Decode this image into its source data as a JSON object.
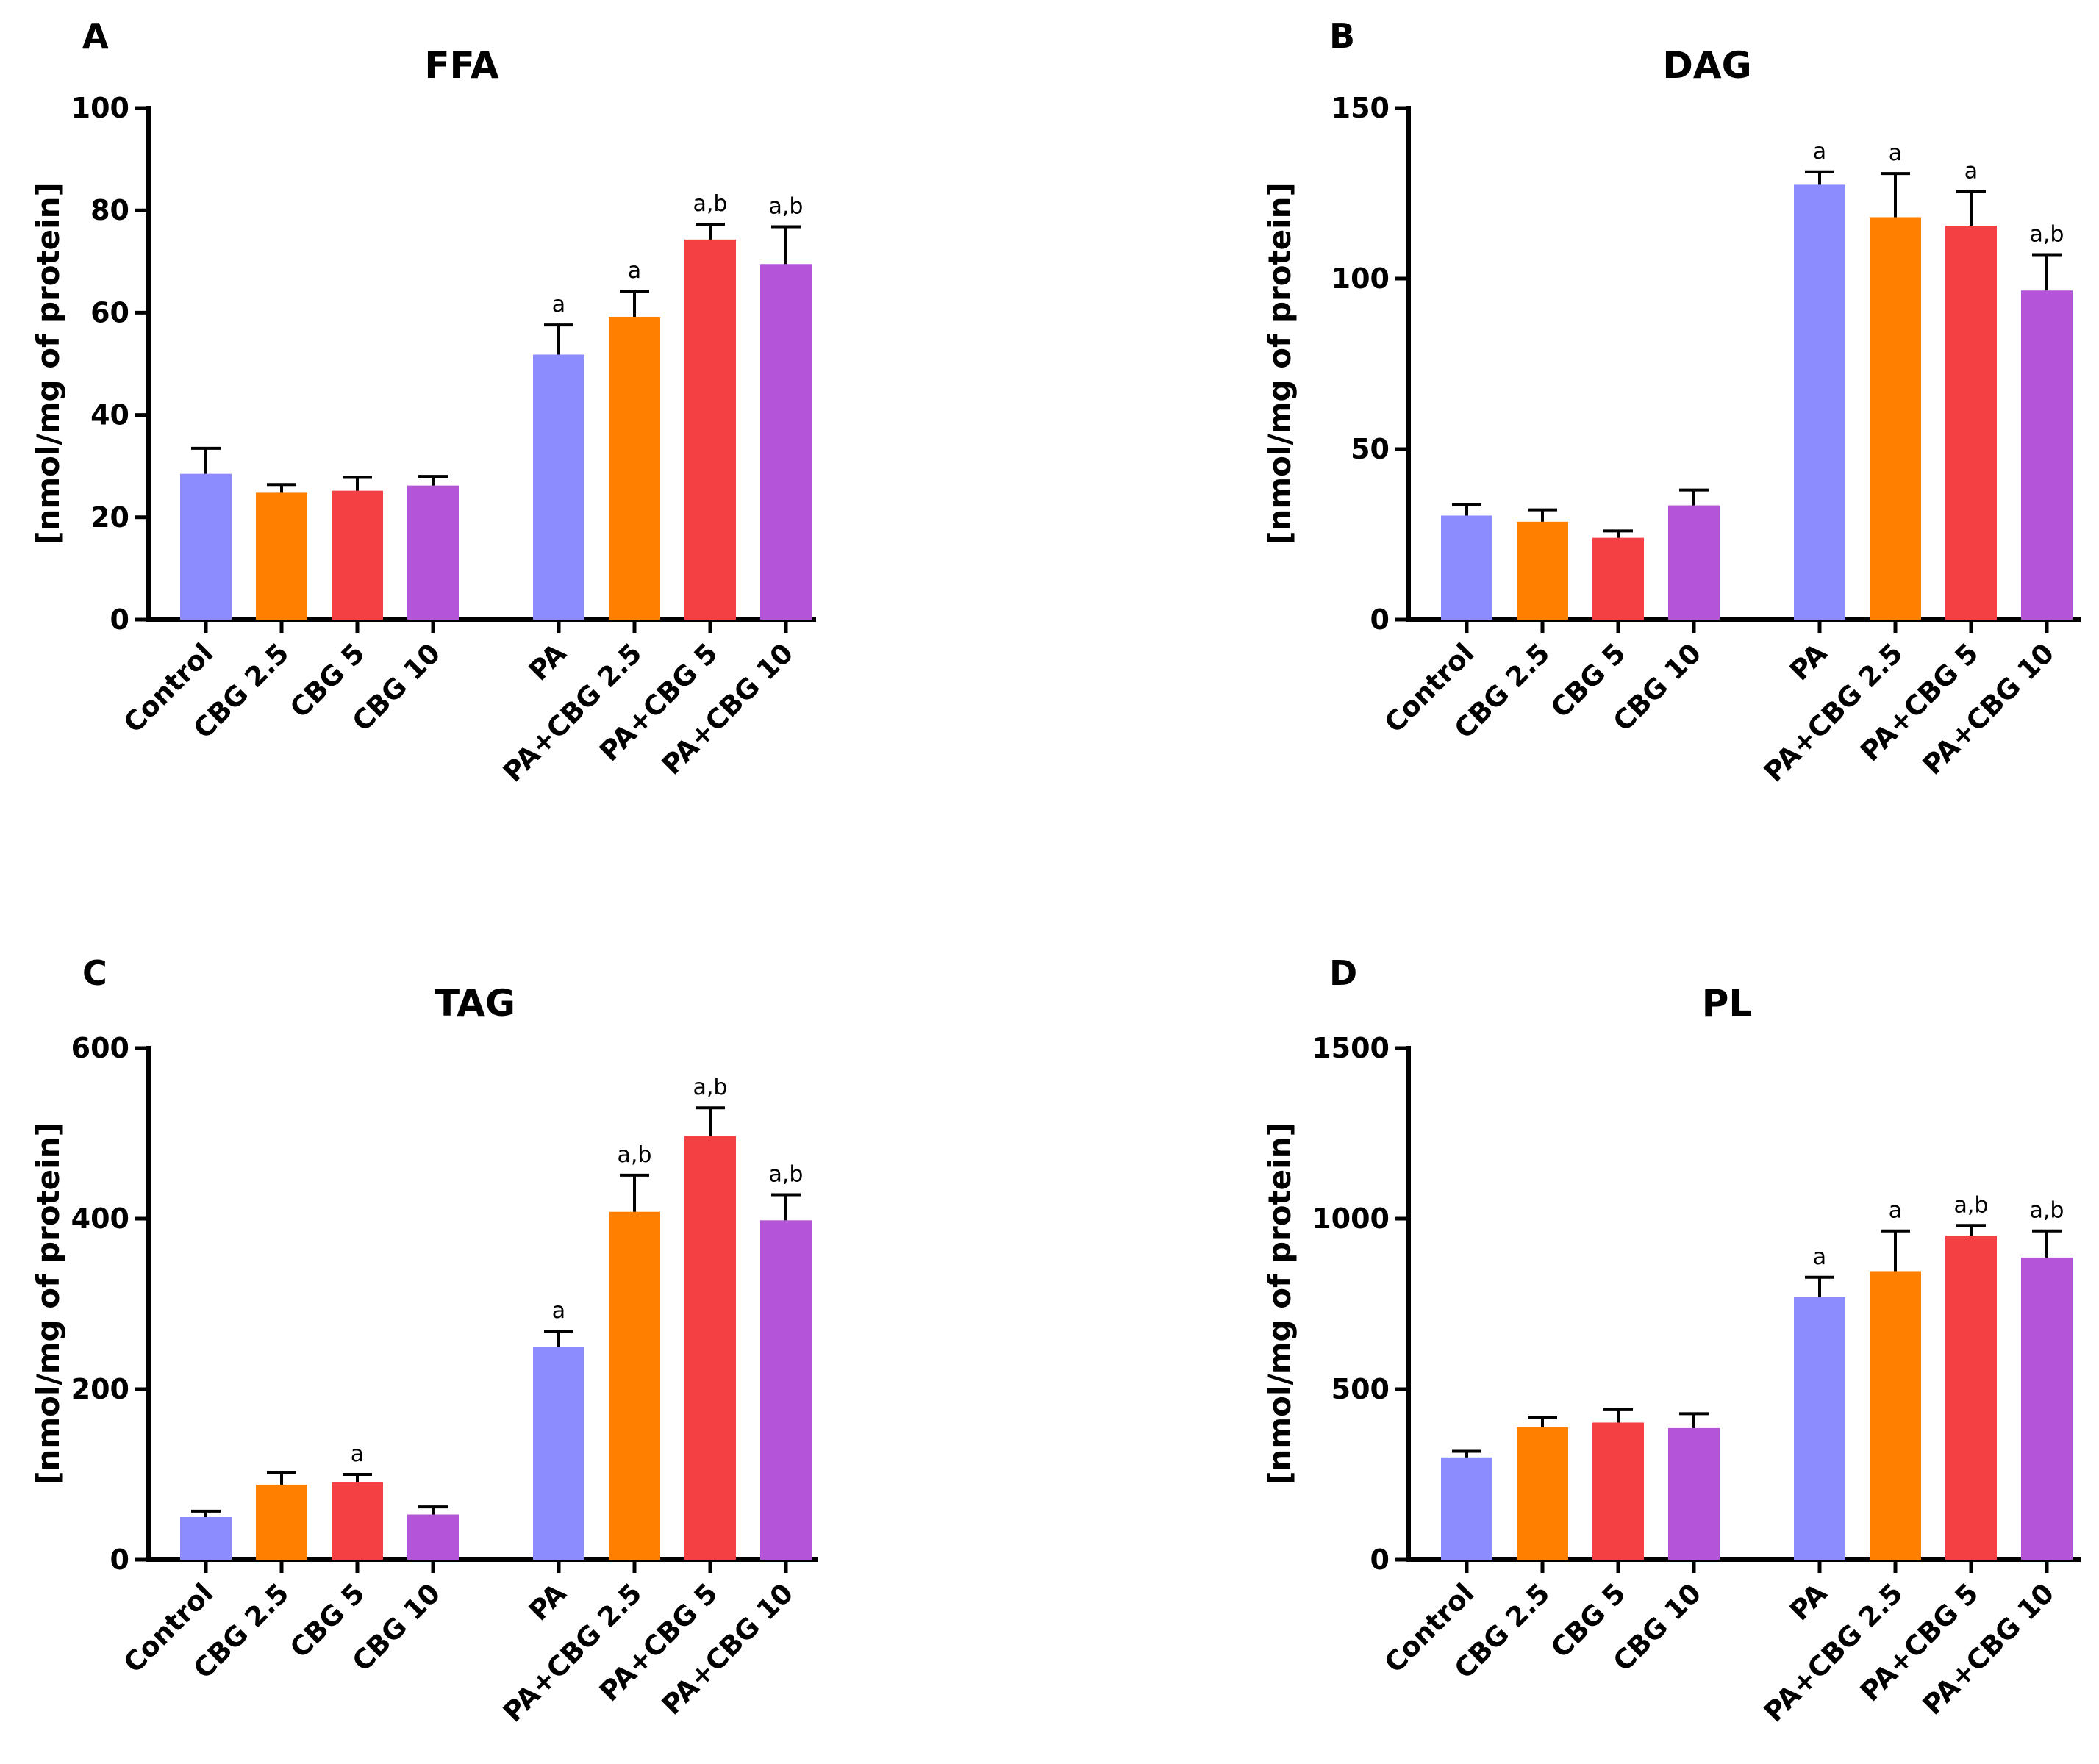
{
  "colors": {
    "control": "#8C8CFF",
    "cbg_2_5": "#FF8000",
    "cbg_5": "#F54043",
    "cbg_10": "#B355D6"
  },
  "chart_data": [
    {
      "type": "bar",
      "panel": "A",
      "title": "FFA",
      "ylabel": "[nmol/mg of protein]",
      "xlabel": "",
      "ylim": [
        0,
        100
      ],
      "yticks": [
        0,
        20,
        40,
        60,
        80,
        100
      ],
      "categories": [
        "Control",
        "CBG 2.5",
        "CBG 5",
        "CBG 10",
        "PA",
        "PA+CBG 2.5",
        "PA+CBG 5",
        "PA+CBG 10"
      ],
      "values": [
        28.5,
        24.8,
        25.2,
        26.2,
        51.8,
        59.2,
        74.3,
        69.5
      ],
      "errors": [
        5,
        1.6,
        2.6,
        1.8,
        5.8,
        5,
        3,
        7.3
      ],
      "significance": [
        "",
        "",
        "",
        "",
        "a",
        "a",
        "a,b",
        "a,b"
      ],
      "bar_colors": [
        "#8C8CFF",
        "#FF8000",
        "#F54043",
        "#B355D6",
        "#8C8CFF",
        "#FF8000",
        "#F54043",
        "#B355D6"
      ]
    },
    {
      "type": "bar",
      "panel": "B",
      "title": "DAG",
      "ylabel": "[nmol/mg of protein]",
      "xlabel": "",
      "ylim": [
        0,
        150
      ],
      "yticks": [
        0,
        50,
        100,
        150
      ],
      "categories": [
        "Control",
        "CBG 2.5",
        "CBG 5",
        "CBG 10",
        "PA",
        "PA+CBG 2.5",
        "PA+CBG 5",
        "PA+CBG 10"
      ],
      "values": [
        30.5,
        28.7,
        24,
        33.5,
        127.5,
        118,
        115.5,
        96.5
      ],
      "errors": [
        3.2,
        3.5,
        2,
        4.5,
        3.8,
        12.8,
        10,
        10.5
      ],
      "significance": [
        "",
        "",
        "",
        "",
        "a",
        "a",
        "a",
        "a,b"
      ],
      "bar_colors": [
        "#8C8CFF",
        "#FF8000",
        "#F54043",
        "#B355D6",
        "#8C8CFF",
        "#FF8000",
        "#F54043",
        "#B355D6"
      ]
    },
    {
      "type": "bar",
      "panel": "C",
      "title": "TAG",
      "ylabel": "[nmol/mg of protein]",
      "xlabel": "",
      "ylim": [
        0,
        600
      ],
      "yticks": [
        0,
        200,
        400,
        600
      ],
      "categories": [
        "Control",
        "CBG 2.5",
        "CBG 5",
        "CBG 10",
        "PA",
        "PA+CBG 2.5",
        "PA+CBG 5",
        "PA+CBG 10"
      ],
      "values": [
        50,
        88,
        91,
        53,
        250,
        408,
        497,
        398
      ],
      "errors": [
        7,
        14,
        9,
        9,
        18,
        43,
        33,
        30
      ],
      "significance": [
        "",
        "",
        "a",
        "",
        "a",
        "a,b",
        "a,b",
        "a,b"
      ],
      "bar_colors": [
        "#8C8CFF",
        "#FF8000",
        "#F54043",
        "#B355D6",
        "#8C8CFF",
        "#FF8000",
        "#F54043",
        "#B355D6"
      ]
    },
    {
      "type": "bar",
      "panel": "D",
      "title": "PL",
      "ylabel": "[nmol/mg of protein]",
      "xlabel": "",
      "ylim": [
        0,
        1500
      ],
      "yticks": [
        0,
        500,
        1000,
        1500
      ],
      "categories": [
        "Control",
        "CBG 2.5",
        "CBG 5",
        "CBG 10",
        "PA",
        "PA+CBG 2.5",
        "PA+CBG 5",
        "PA+CBG 10"
      ],
      "values": [
        300,
        388,
        402,
        386,
        770,
        846,
        950,
        886
      ],
      "errors": [
        18,
        28,
        38,
        42,
        58,
        118,
        30,
        78
      ],
      "significance": [
        "",
        "",
        "",
        "",
        "a",
        "a",
        "a,b",
        "a,b"
      ],
      "bar_colors": [
        "#8C8CFF",
        "#FF8000",
        "#F54043",
        "#B355D6",
        "#8C8CFF",
        "#FF8000",
        "#F54043",
        "#B355D6"
      ]
    }
  ]
}
